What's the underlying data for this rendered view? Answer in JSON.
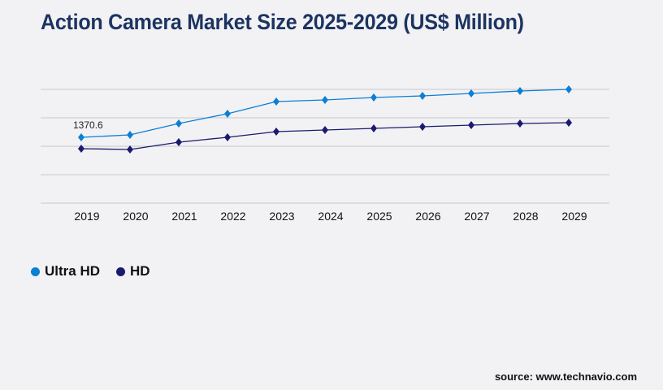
{
  "chart_data": {
    "type": "line",
    "title": "Action Camera Market Size 2025-2029 (US$ Million)",
    "xlabel": "",
    "ylabel": "",
    "categories": [
      "2019",
      "2020",
      "2021",
      "2022",
      "2023",
      "2024",
      "2025",
      "2026",
      "2027",
      "2028",
      "2029"
    ],
    "ylim": [
      0,
      2369
    ],
    "grid": true,
    "legend_position": "bottom-left",
    "series": [
      {
        "name": "Ultra HD",
        "color": "#0b7fd4",
        "values": [
          1370.6,
          1421,
          1658,
          1861,
          2115,
          2149,
          2200,
          2233,
          2284,
          2335,
          2369
        ]
      },
      {
        "name": "HD",
        "color": "#1b1a6f",
        "values": [
          1134,
          1117,
          1269,
          1371,
          1489,
          1523,
          1557,
          1591,
          1624,
          1658,
          1675
        ]
      }
    ],
    "annotations": [
      {
        "series": "Ultra HD",
        "category": "2019",
        "text": "1370.6"
      }
    ]
  },
  "source": "source: www.technavio.com"
}
